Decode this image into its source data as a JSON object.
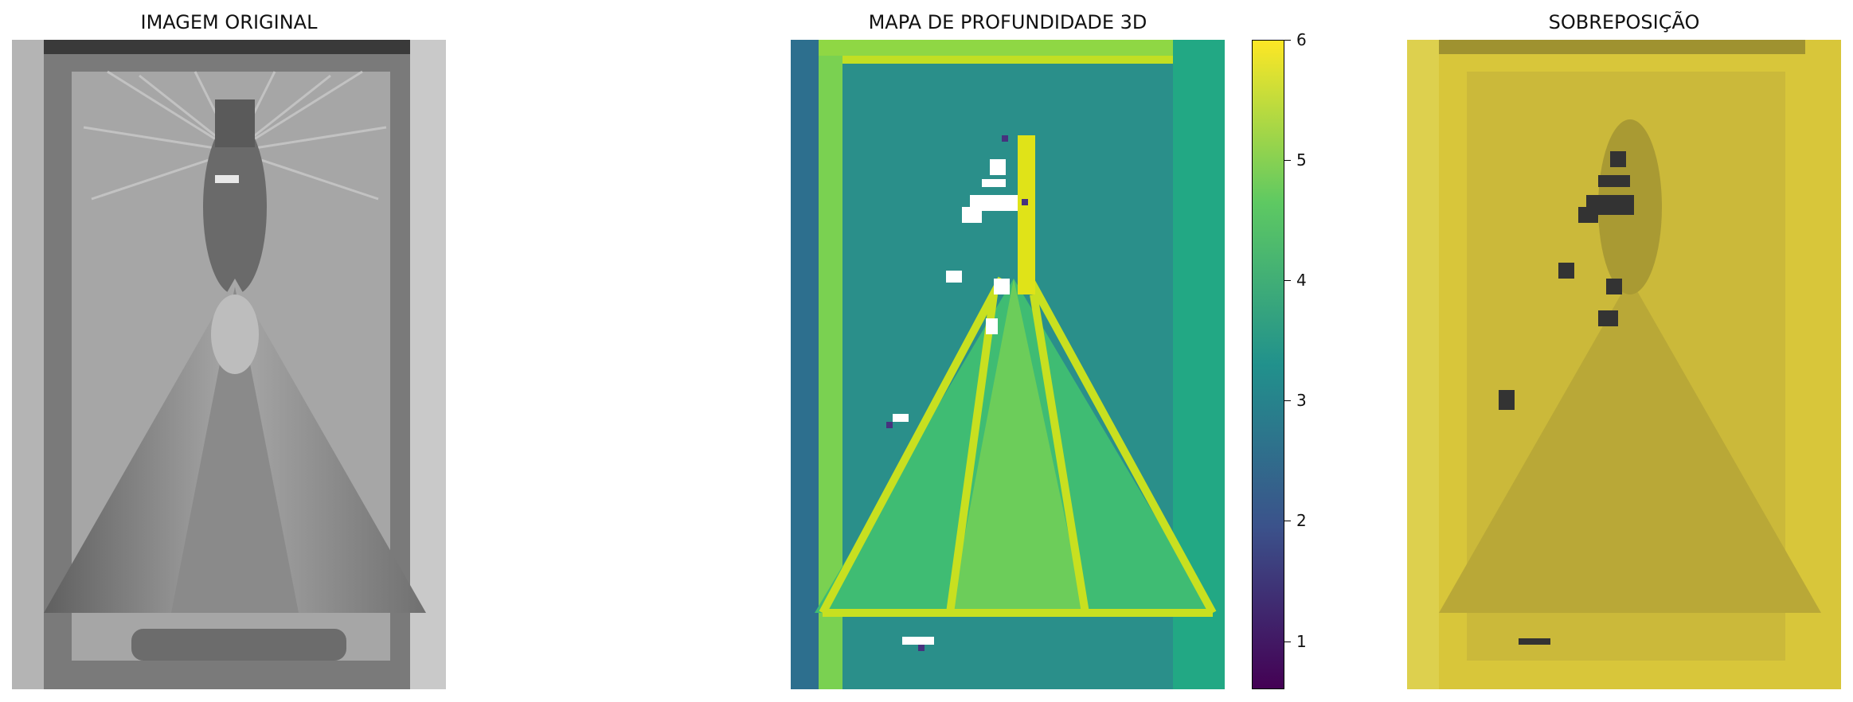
{
  "panels": {
    "original": {
      "title": "IMAGEM ORIGINAL"
    },
    "depth": {
      "title": "MAPA DE PROFUNDIDADE 3D"
    },
    "overlay": {
      "title": "SOBREPOSIÇÃO"
    }
  },
  "colorbar": {
    "min": 0.6,
    "max": 6,
    "ticks": [
      "1",
      "2",
      "3",
      "4",
      "5",
      "6"
    ],
    "colormap": "viridis",
    "colors": [
      "#440154",
      "#3b528b",
      "#21918c",
      "#5ec962",
      "#fde725"
    ]
  },
  "overlay_tint": "#d8c63a"
}
